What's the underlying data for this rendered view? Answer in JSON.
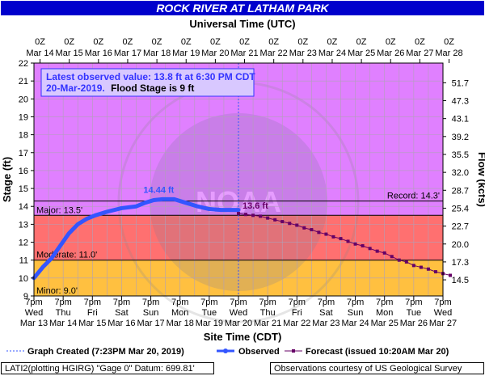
{
  "title": "ROCK RIVER AT LATHAM PARK",
  "top_axis_title": "Universal Time (UTC)",
  "bottom_axis_title": "Site Time (CDT)",
  "y_axis_left_label": "Stage (ft)",
  "y_axis_right_label": "Flow (kcfs)",
  "top_ticks": [
    {
      "time": "0Z",
      "date": "Mar 14"
    },
    {
      "time": "0Z",
      "date": "Mar 15"
    },
    {
      "time": "0Z",
      "date": "Mar 16"
    },
    {
      "time": "0Z",
      "date": "Mar 17"
    },
    {
      "time": "0Z",
      "date": "Mar 18"
    },
    {
      "time": "0Z",
      "date": "Mar 19"
    },
    {
      "time": "0Z",
      "date": "Mar 20"
    },
    {
      "time": "0Z",
      "date": "Mar 21"
    },
    {
      "time": "0Z",
      "date": "Mar 22"
    },
    {
      "time": "0Z",
      "date": "Mar 23"
    },
    {
      "time": "0Z",
      "date": "Mar 24"
    },
    {
      "time": "0Z",
      "date": "Mar 25"
    },
    {
      "time": "0Z",
      "date": "Mar 26"
    },
    {
      "time": "0Z",
      "date": "Mar 27"
    },
    {
      "time": "0Z",
      "date": "Mar 28"
    }
  ],
  "bottom_ticks": [
    {
      "time": "7pm",
      "day": "Wed",
      "date": "Mar 13"
    },
    {
      "time": "7pm",
      "day": "Thu",
      "date": "Mar 14"
    },
    {
      "time": "7pm",
      "day": "Fri",
      "date": "Mar 15"
    },
    {
      "time": "7pm",
      "day": "Sat",
      "date": "Mar 16"
    },
    {
      "time": "7pm",
      "day": "Sun",
      "date": "Mar 17"
    },
    {
      "time": "7pm",
      "day": "Mon",
      "date": "Mar 18"
    },
    {
      "time": "7pm",
      "day": "Tue",
      "date": "Mar 19"
    },
    {
      "time": "7pm",
      "day": "Wed",
      "date": "Mar 20"
    },
    {
      "time": "7pm",
      "day": "Thu",
      "date": "Mar 21"
    },
    {
      "time": "7pm",
      "day": "Fri",
      "date": "Mar 22"
    },
    {
      "time": "7pm",
      "day": "Sat",
      "date": "Mar 23"
    },
    {
      "time": "7pm",
      "day": "Sun",
      "date": "Mar 24"
    },
    {
      "time": "7pm",
      "day": "Mon",
      "date": "Mar 25"
    },
    {
      "time": "7pm",
      "day": "Tue",
      "date": "Mar 26"
    },
    {
      "time": "7pm",
      "day": "Wed",
      "date": "Mar 27"
    }
  ],
  "y_left_ticks": [
    "9",
    "10",
    "11",
    "12",
    "13",
    "14",
    "15",
    "16",
    "17",
    "18",
    "19",
    "20",
    "21",
    "22"
  ],
  "y_right_ticks": [
    {
      "stage": 9.9,
      "label": "14.5"
    },
    {
      "stage": 10.9,
      "label": "17.3"
    },
    {
      "stage": 11.9,
      "label": "20.0"
    },
    {
      "stage": 12.9,
      "label": "22.7"
    },
    {
      "stage": 13.9,
      "label": "25.4"
    },
    {
      "stage": 14.9,
      "label": "28.7"
    },
    {
      "stage": 15.9,
      "label": "32.0"
    },
    {
      "stage": 16.9,
      "label": "35.5"
    },
    {
      "stage": 17.9,
      "label": "39.2"
    },
    {
      "stage": 18.9,
      "label": "43.1"
    },
    {
      "stage": 19.9,
      "label": "47.3"
    },
    {
      "stage": 20.9,
      "label": "51.7"
    }
  ],
  "info_box": {
    "line1": "Latest observed value: 13.8 ft at 6:30 PM CDT",
    "line2_date": "20-Mar-2019.",
    "line2_flood": "Flood Stage is 9 ft"
  },
  "thresholds": {
    "minor": {
      "label": "Minor: 9.0'",
      "value": 9.0,
      "color": "#ffc040"
    },
    "moderate": {
      "label": "Moderate: 11.0'",
      "value": 11.0,
      "color": "#ff7070"
    },
    "major": {
      "label": "Major: 13.5'",
      "value": 13.5,
      "color": "#e080ff"
    },
    "record": {
      "label": "Record: 14.3'",
      "value": 14.3
    }
  },
  "legend": {
    "graph_created": "Graph Created (7:23PM Mar 20, 2019)",
    "observed": "Observed",
    "forecast": "Forecast (issued 10:20AM Mar 20)"
  },
  "footer": {
    "left": "LATI2(plotting HGIRG) \"Gage 0\" Datum: 699.81'",
    "right": "Observations courtesy of US Geological Survey"
  },
  "colors": {
    "title_bg": "#0000cc",
    "observed": "#3355ff",
    "forecast": "#660066",
    "minor_band": "#ffc040",
    "moderate_band": "#ff7070",
    "major_band": "#e080ff",
    "info_text": "#3333ff"
  },
  "chart_data": {
    "type": "line",
    "x_unit": "days after 7pm CDT Mar 13",
    "ylim": [
      9,
      22
    ],
    "xlim": [
      0,
      14
    ],
    "created_time": 7.0,
    "peak_annotation": {
      "x": 4.3,
      "y": 14.44,
      "label": "14.44 ft"
    },
    "forecast_annotation": {
      "x": 7.0,
      "y": 13.6,
      "label": "13.6 ft"
    },
    "series": [
      {
        "name": "Observed",
        "points": [
          [
            0,
            10.0
          ],
          [
            0.3,
            10.6
          ],
          [
            0.6,
            11.1
          ],
          [
            0.9,
            11.8
          ],
          [
            1.2,
            12.5
          ],
          [
            1.5,
            13.0
          ],
          [
            1.8,
            13.3
          ],
          [
            2.1,
            13.5
          ],
          [
            2.5,
            13.7
          ],
          [
            3.0,
            13.9
          ],
          [
            3.5,
            14.0
          ],
          [
            3.8,
            14.2
          ],
          [
            4.1,
            14.35
          ],
          [
            4.4,
            14.4
          ],
          [
            4.8,
            14.4
          ],
          [
            5.2,
            14.2
          ],
          [
            5.6,
            14.0
          ],
          [
            6.0,
            13.85
          ],
          [
            6.4,
            13.8
          ],
          [
            6.8,
            13.8
          ],
          [
            7.0,
            13.8
          ]
        ]
      },
      {
        "name": "Forecast",
        "points": [
          [
            7.0,
            13.6
          ],
          [
            7.25,
            13.55
          ],
          [
            7.5,
            13.5
          ],
          [
            7.75,
            13.45
          ],
          [
            8.0,
            13.35
          ],
          [
            8.25,
            13.25
          ],
          [
            8.5,
            13.15
          ],
          [
            8.75,
            13.05
          ],
          [
            9.0,
            12.95
          ],
          [
            9.25,
            12.8
          ],
          [
            9.5,
            12.7
          ],
          [
            9.75,
            12.55
          ],
          [
            10.0,
            12.45
          ],
          [
            10.25,
            12.3
          ],
          [
            10.5,
            12.2
          ],
          [
            10.75,
            12.05
          ],
          [
            11.0,
            11.9
          ],
          [
            11.25,
            11.8
          ],
          [
            11.5,
            11.65
          ],
          [
            11.75,
            11.5
          ],
          [
            12.0,
            11.4
          ],
          [
            12.25,
            11.2
          ],
          [
            12.5,
            11.0
          ],
          [
            12.75,
            10.9
          ],
          [
            13.0,
            10.7
          ],
          [
            13.25,
            10.6
          ],
          [
            13.5,
            10.5
          ],
          [
            13.75,
            10.35
          ],
          [
            14.0,
            10.25
          ],
          [
            14.25,
            10.15
          ]
        ]
      }
    ]
  }
}
